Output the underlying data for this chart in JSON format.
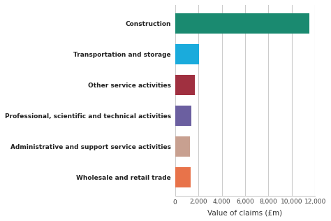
{
  "categories": [
    "Wholesale and retail trade",
    "Administrative and support service activities",
    "Professional, scientific and technical activities",
    "Other service activities",
    "Transportation and storage",
    "Construction"
  ],
  "values": [
    1350,
    1300,
    1400,
    1700,
    2050,
    11500
  ],
  "colors": [
    "#E8734A",
    "#C8A090",
    "#6B5FA0",
    "#A03040",
    "#1AABDC",
    "#1A8A70"
  ],
  "xlabel": "Value of claims (£m)",
  "xlim": [
    0,
    12000
  ],
  "xticks": [
    0,
    2000,
    4000,
    6000,
    8000,
    10000,
    12000
  ],
  "background_color": "#ffffff",
  "grid_color": "#cccccc",
  "label_fontsize": 6.5,
  "xlabel_fontsize": 7.5,
  "bar_height": 0.65
}
